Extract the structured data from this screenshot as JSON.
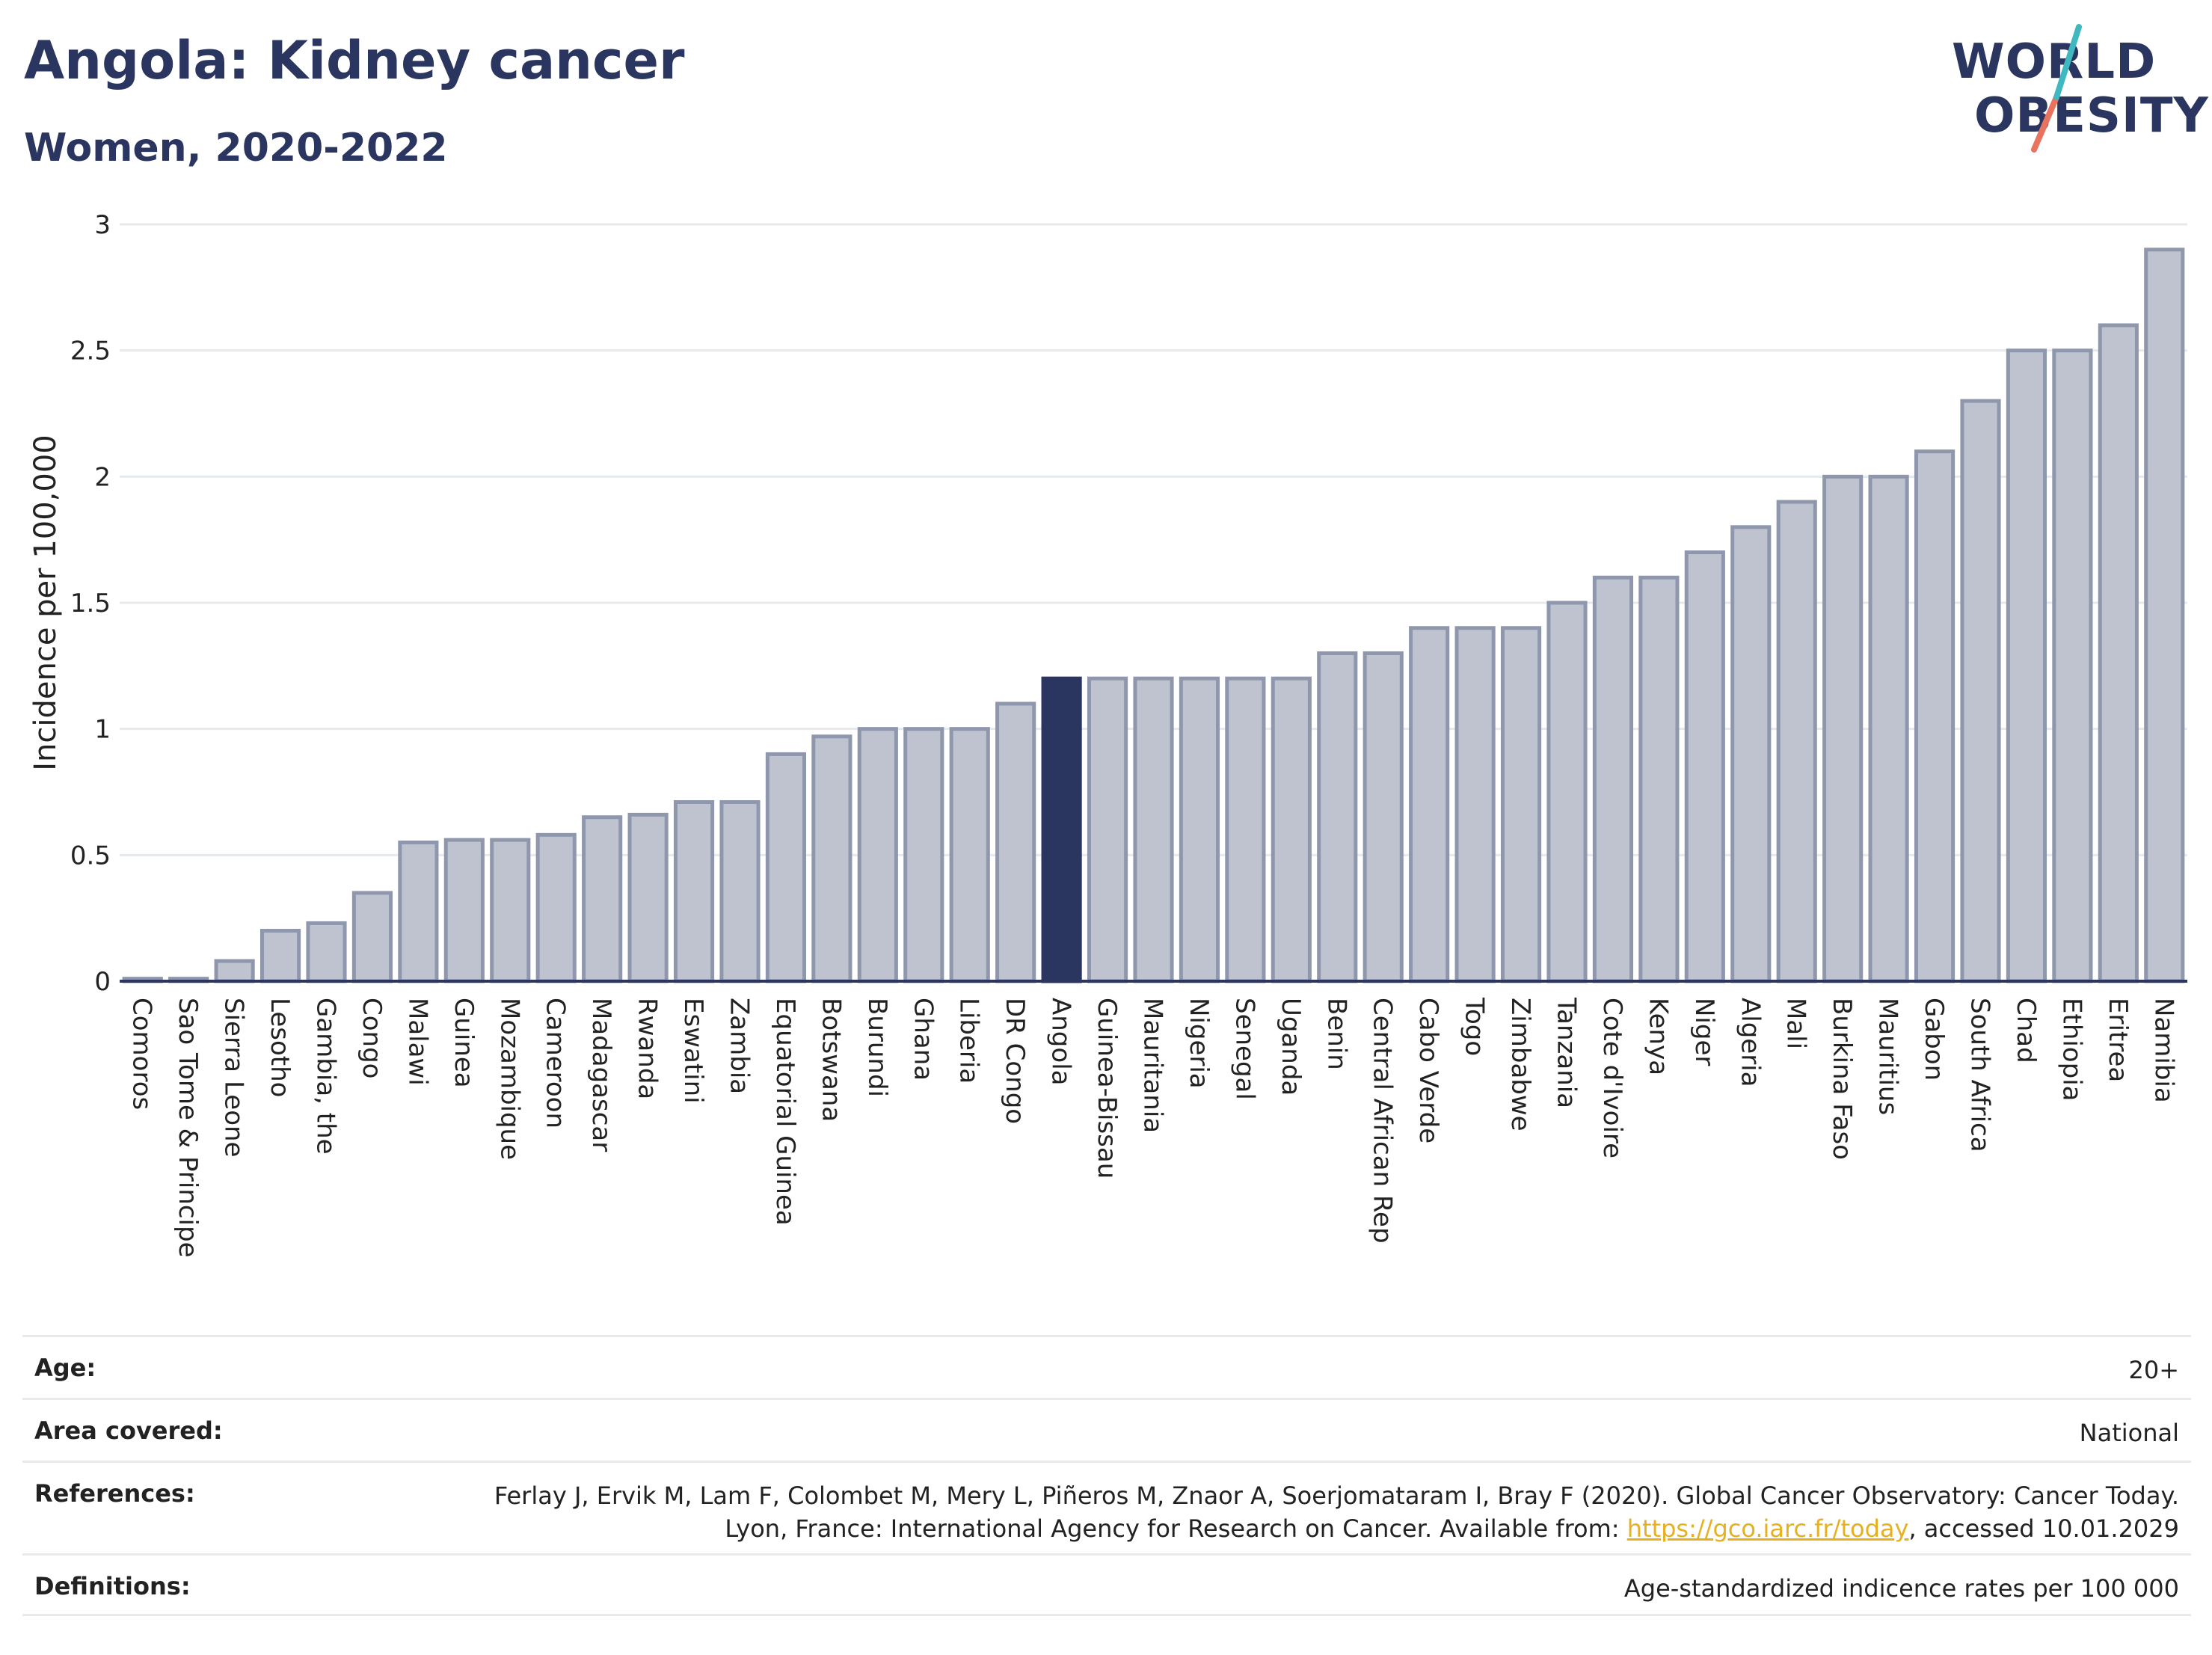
{
  "header": {
    "title": "Angola: Kidney cancer",
    "subtitle": "Women, 2020-2022"
  },
  "logo": {
    "line1": "WORLD",
    "line2": "OBESITY"
  },
  "colors": {
    "bar_default": "#bfc3d0",
    "bar_border": "#8f97ad",
    "bar_highlight": "#2a3560",
    "grid": "#e6eaed",
    "axis": "#2a3560",
    "logo_teal": "#3fb8c0",
    "logo_coral": "#e8735e"
  },
  "chart_data": {
    "type": "bar",
    "ylabel": "Incidence per 100,000",
    "xlabel": "",
    "ylim": [
      0,
      3
    ],
    "yticks": [
      0,
      0.5,
      1,
      1.5,
      2,
      2.5,
      3
    ],
    "grid": true,
    "highlight": "Angola",
    "categories": [
      "Comoros",
      "Sao Tome & Principe",
      "Sierra Leone",
      "Lesotho",
      "Gambia, the",
      "Congo",
      "Malawi",
      "Guinea",
      "Mozambique",
      "Cameroon",
      "Madagascar",
      "Rwanda",
      "Eswatini",
      "Zambia",
      "Equatorial Guinea",
      "Botswana",
      "Burundi",
      "Ghana",
      "Liberia",
      "DR Congo",
      "Angola",
      "Guinea-Bissau",
      "Mauritania",
      "Nigeria",
      "Senegal",
      "Uganda",
      "Benin",
      "Central African Rep",
      "Cabo Verde",
      "Togo",
      "Zimbabwe",
      "Tanzania",
      "Cote d'Ivoire",
      "Kenya",
      "Niger",
      "Algeria",
      "Mali",
      "Burkina Faso",
      "Mauritius",
      "Gabon",
      "South Africa",
      "Chad",
      "Ethiopia",
      "Eritrea",
      "Namibia"
    ],
    "values": [
      0.01,
      0.01,
      0.08,
      0.2,
      0.23,
      0.35,
      0.55,
      0.56,
      0.56,
      0.58,
      0.65,
      0.66,
      0.71,
      0.71,
      0.9,
      0.97,
      1.0,
      1.0,
      1.0,
      1.1,
      1.2,
      1.2,
      1.2,
      1.2,
      1.2,
      1.2,
      1.3,
      1.3,
      1.4,
      1.4,
      1.4,
      1.5,
      1.6,
      1.6,
      1.7,
      1.8,
      1.9,
      2.0,
      2.0,
      2.1,
      2.3,
      2.5,
      2.5,
      2.6,
      2.9
    ]
  },
  "info": {
    "age_label": "Age:",
    "age_value": "20+",
    "area_label": "Area covered:",
    "area_value": "National",
    "references_label": "References:",
    "references_text": "Ferlay J, Ervik M, Lam F, Colombet M, Mery L, Piñeros M, Znaor A, Soerjomataram I, Bray F (2020). Global Cancer Observatory: Cancer Today. Lyon, France: International Agency for Research on Cancer. Available from: ",
    "references_link": "https://gco.iarc.fr/today",
    "references_suffix": ", accessed 10.01.2029",
    "definitions_label": "Definitions:",
    "definitions_value": "Age-standardized indicence rates per 100 000"
  }
}
